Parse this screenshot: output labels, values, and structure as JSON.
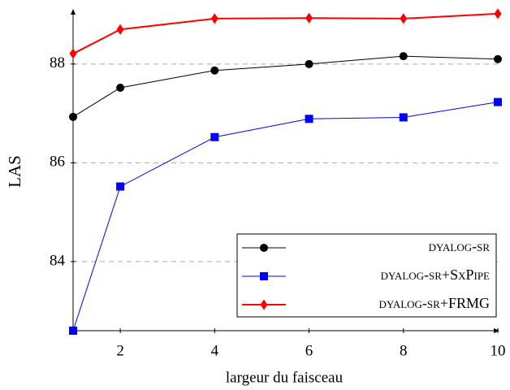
{
  "chart_data": {
    "type": "line",
    "x_label": "largeur du faisceau",
    "y_label": "LAS",
    "x": [
      1,
      2,
      4,
      6,
      8,
      10
    ],
    "series": [
      {
        "name": "dyalog-sr",
        "color": "#000000",
        "marker": "circle",
        "values": [
          86.93,
          87.52,
          87.87,
          88.0,
          88.16,
          88.1
        ]
      },
      {
        "name": "dyalog-sr+SxPipe",
        "color": "#0000ff",
        "marker": "square",
        "values": [
          82.6,
          85.52,
          86.52,
          86.89,
          86.92,
          87.23
        ]
      },
      {
        "name": "dyalog-sr+FRMG",
        "color": "#ff0000",
        "marker": "diamond",
        "values": [
          88.21,
          88.7,
          88.92,
          88.93,
          88.92,
          89.02
        ]
      }
    ],
    "xlim": [
      1,
      10
    ],
    "xticks": [
      2,
      4,
      6,
      8,
      10
    ],
    "ylim": [
      82.6,
      89.05
    ],
    "yticks": [
      84,
      86,
      88
    ],
    "grid": true,
    "legend": "lower right"
  }
}
